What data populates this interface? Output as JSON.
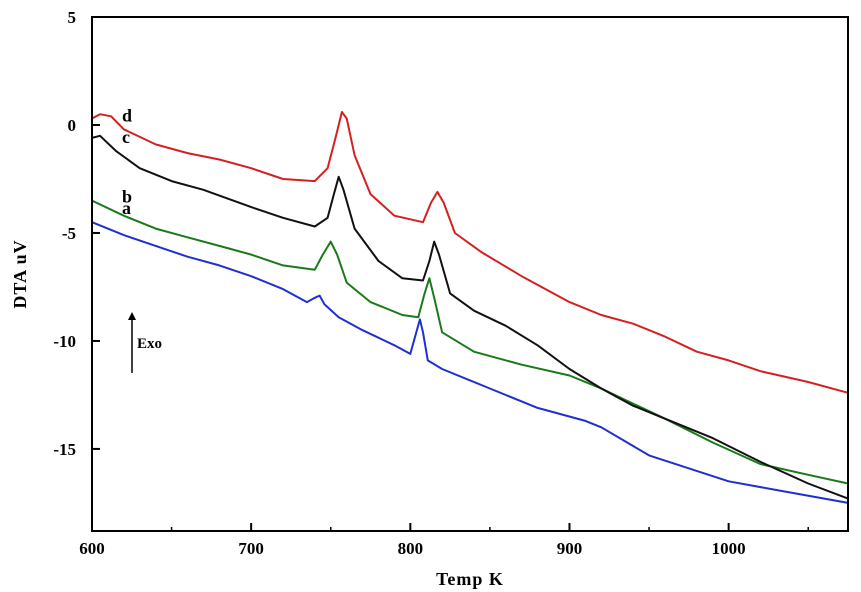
{
  "chart_data": {
    "type": "line",
    "title": "",
    "xlabel": "Temp K",
    "ylabel": "DTA uV",
    "xlim": [
      600,
      1075
    ],
    "ylim": [
      -18.8,
      5
    ],
    "x_ticks": [
      600,
      700,
      800,
      900,
      1000
    ],
    "y_ticks": [
      5,
      0,
      -5,
      -10,
      -15
    ],
    "annotation": "Exo",
    "series": [
      {
        "name": "a",
        "color": "#1f2fd1",
        "points": [
          [
            600,
            -4.5
          ],
          [
            620,
            -5.1
          ],
          [
            640,
            -5.6
          ],
          [
            660,
            -6.1
          ],
          [
            680,
            -6.5
          ],
          [
            700,
            -7.0
          ],
          [
            720,
            -7.6
          ],
          [
            735,
            -8.2
          ],
          [
            740,
            -8.0
          ],
          [
            743,
            -7.9
          ],
          [
            746,
            -8.3
          ],
          [
            755,
            -8.9
          ],
          [
            770,
            -9.5
          ],
          [
            790,
            -10.2
          ],
          [
            800,
            -10.6
          ],
          [
            803,
            -9.8
          ],
          [
            806,
            -9.0
          ],
          [
            808,
            -9.6
          ],
          [
            811,
            -10.9
          ],
          [
            820,
            -11.3
          ],
          [
            850,
            -12.2
          ],
          [
            880,
            -13.1
          ],
          [
            910,
            -13.7
          ],
          [
            920,
            -14.0
          ],
          [
            950,
            -15.3
          ],
          [
            1000,
            -16.5
          ],
          [
            1030,
            -16.9
          ],
          [
            1075,
            -17.5
          ]
        ]
      },
      {
        "name": "b",
        "color": "#1a7a1a",
        "points": [
          [
            600,
            -3.5
          ],
          [
            620,
            -4.2
          ],
          [
            640,
            -4.8
          ],
          [
            660,
            -5.2
          ],
          [
            680,
            -5.6
          ],
          [
            700,
            -6.0
          ],
          [
            720,
            -6.5
          ],
          [
            740,
            -6.7
          ],
          [
            745,
            -6.0
          ],
          [
            750,
            -5.4
          ],
          [
            754,
            -6.0
          ],
          [
            760,
            -7.3
          ],
          [
            775,
            -8.2
          ],
          [
            795,
            -8.8
          ],
          [
            805,
            -8.9
          ],
          [
            809,
            -7.8
          ],
          [
            812,
            -7.1
          ],
          [
            815,
            -8.0
          ],
          [
            820,
            -9.6
          ],
          [
            840,
            -10.5
          ],
          [
            870,
            -11.1
          ],
          [
            900,
            -11.6
          ],
          [
            920,
            -12.2
          ],
          [
            940,
            -12.9
          ],
          [
            960,
            -13.6
          ],
          [
            990,
            -14.7
          ],
          [
            1020,
            -15.7
          ],
          [
            1050,
            -16.2
          ],
          [
            1075,
            -16.6
          ]
        ]
      },
      {
        "name": "c",
        "color": "#111111",
        "points": [
          [
            600,
            -0.6
          ],
          [
            605,
            -0.5
          ],
          [
            615,
            -1.2
          ],
          [
            630,
            -2.0
          ],
          [
            650,
            -2.6
          ],
          [
            670,
            -3.0
          ],
          [
            700,
            -3.8
          ],
          [
            720,
            -4.3
          ],
          [
            740,
            -4.7
          ],
          [
            748,
            -4.3
          ],
          [
            752,
            -3.2
          ],
          [
            755,
            -2.4
          ],
          [
            758,
            -3.0
          ],
          [
            765,
            -4.8
          ],
          [
            780,
            -6.3
          ],
          [
            795,
            -7.1
          ],
          [
            808,
            -7.2
          ],
          [
            812,
            -6.3
          ],
          [
            815,
            -5.4
          ],
          [
            818,
            -6.0
          ],
          [
            825,
            -7.8
          ],
          [
            840,
            -8.6
          ],
          [
            860,
            -9.3
          ],
          [
            880,
            -10.2
          ],
          [
            900,
            -11.3
          ],
          [
            920,
            -12.2
          ],
          [
            940,
            -13.0
          ],
          [
            960,
            -13.6
          ],
          [
            990,
            -14.5
          ],
          [
            1020,
            -15.6
          ],
          [
            1050,
            -16.6
          ],
          [
            1075,
            -17.3
          ]
        ]
      },
      {
        "name": "d",
        "color": "#d42020",
        "points": [
          [
            600,
            0.3
          ],
          [
            605,
            0.5
          ],
          [
            612,
            0.4
          ],
          [
            620,
            -0.2
          ],
          [
            640,
            -0.9
          ],
          [
            660,
            -1.3
          ],
          [
            680,
            -1.6
          ],
          [
            700,
            -2.0
          ],
          [
            720,
            -2.5
          ],
          [
            740,
            -2.6
          ],
          [
            748,
            -2.0
          ],
          [
            753,
            -0.6
          ],
          [
            757,
            0.6
          ],
          [
            760,
            0.3
          ],
          [
            765,
            -1.4
          ],
          [
            775,
            -3.2
          ],
          [
            790,
            -4.2
          ],
          [
            808,
            -4.5
          ],
          [
            813,
            -3.6
          ],
          [
            817,
            -3.1
          ],
          [
            821,
            -3.6
          ],
          [
            828,
            -5.0
          ],
          [
            845,
            -5.9
          ],
          [
            870,
            -7.0
          ],
          [
            900,
            -8.2
          ],
          [
            920,
            -8.8
          ],
          [
            940,
            -9.2
          ],
          [
            960,
            -9.8
          ],
          [
            980,
            -10.5
          ],
          [
            1000,
            -10.9
          ],
          [
            1020,
            -11.4
          ],
          [
            1050,
            -11.9
          ],
          [
            1075,
            -12.4
          ]
        ]
      }
    ]
  }
}
